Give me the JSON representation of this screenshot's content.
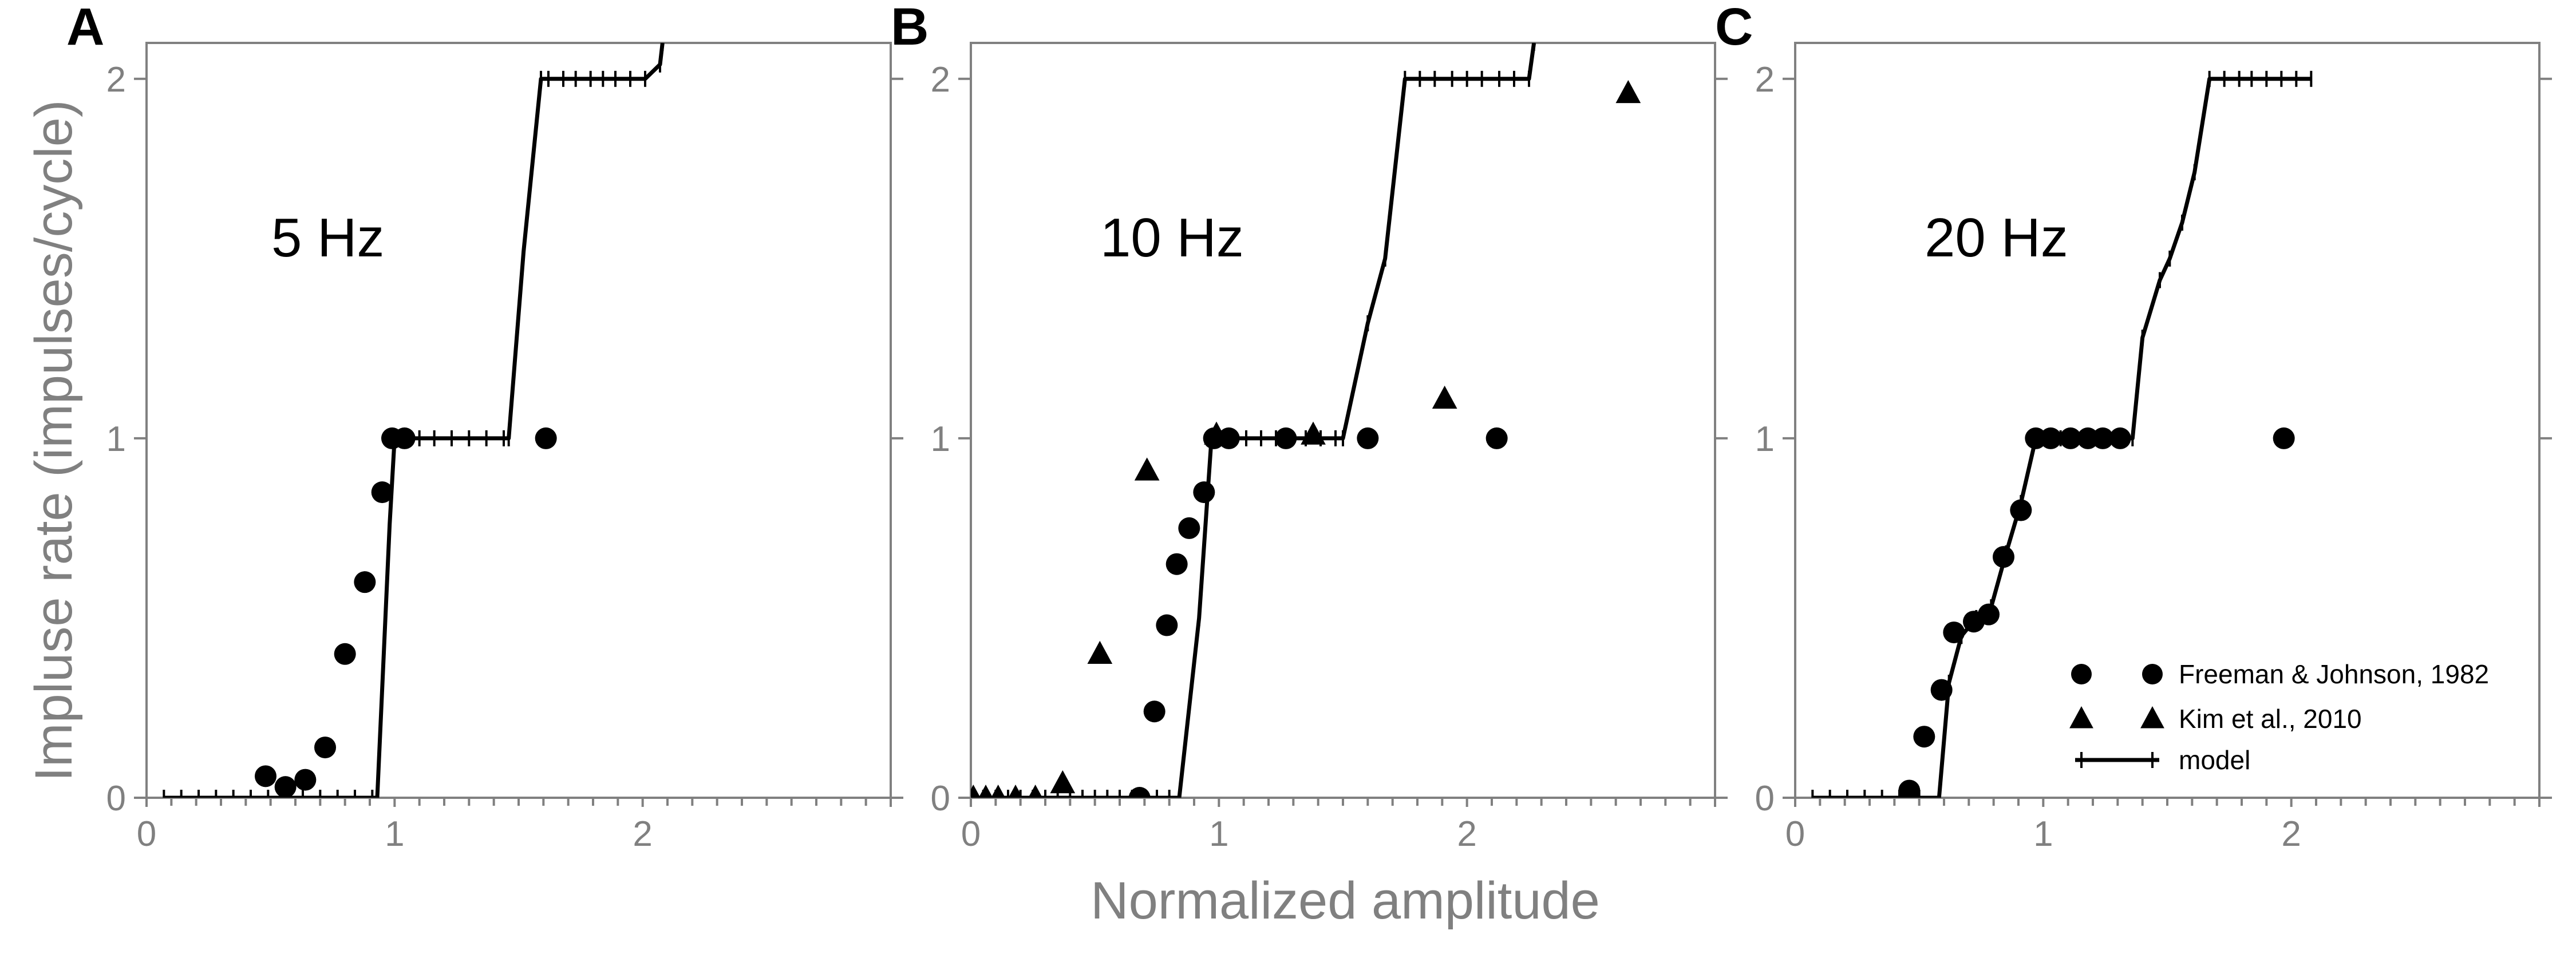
{
  "figure": {
    "ylabel": "Impluse rate (impulses/cycle)",
    "xlabel": "Normalized amplitude"
  },
  "legend": {
    "position": "bottom-right of panel C",
    "entries": [
      {
        "label": "Freeman & Johnson, 1982",
        "marker": "circle"
      },
      {
        "label": "Kim et al., 2010",
        "marker": "triangle"
      },
      {
        "label": "model",
        "marker": "line-with-ticks"
      }
    ]
  },
  "colors": {
    "axis": "#808080",
    "data": "#000000"
  },
  "chart_data": [
    {
      "panel": "A",
      "type": "line",
      "title": "5 Hz",
      "xlim": [
        0,
        3
      ],
      "ylim": [
        0,
        2.1
      ],
      "xticks": [
        0,
        0.1,
        0.2,
        0.3,
        0.4,
        0.5,
        0.6,
        0.7,
        0.8,
        0.9,
        1.0,
        1.1,
        1.2,
        1.3,
        1.4,
        1.5,
        1.6,
        1.7,
        1.8,
        1.9,
        2.0,
        2.1,
        2.2,
        2.3,
        2.4,
        2.5,
        2.6,
        2.7,
        2.8,
        2.9,
        3.0
      ],
      "xtick_labels": {
        "0": "0",
        "1": "1",
        "2": "2"
      },
      "yticks": [
        0,
        1,
        2
      ],
      "ytick_labels": [
        "0",
        "1",
        "2"
      ],
      "series": [
        {
          "name": "Freeman & Johnson, 1982",
          "marker": "circle",
          "x": [
            0.48,
            0.56,
            0.64,
            0.72,
            0.8,
            0.88,
            0.95,
            0.99,
            1.04,
            1.61
          ],
          "y": [
            0.06,
            0.03,
            0.05,
            0.14,
            0.4,
            0.6,
            0.85,
            1.0,
            1.0,
            1.0
          ]
        },
        {
          "name": "model",
          "marker": "line-with-ticks",
          "x": [
            0.07,
            0.14,
            0.21,
            0.28,
            0.35,
            0.42,
            0.49,
            0.56,
            0.63,
            0.7,
            0.77,
            0.84,
            0.91,
            0.93,
            0.98,
            1.0,
            1.04,
            1.1,
            1.16,
            1.23,
            1.3,
            1.37,
            1.44,
            1.46,
            1.52,
            1.59,
            1.62,
            1.68,
            1.73,
            1.79,
            1.84,
            1.89,
            1.95,
            2.01,
            2.07,
            2.08
          ],
          "y": [
            0,
            0,
            0,
            0,
            0,
            0,
            0,
            0,
            0,
            0,
            0,
            0,
            0,
            0,
            0.76,
            1,
            1,
            1,
            1,
            1,
            1,
            1,
            1,
            1,
            1.52,
            2,
            2,
            2,
            2,
            2,
            2,
            2,
            2,
            2,
            2.04,
            2.1
          ]
        }
      ]
    },
    {
      "panel": "B",
      "type": "line",
      "title": "10 Hz",
      "xlim": [
        0,
        3
      ],
      "ylim": [
        0,
        2.1
      ],
      "xticks": [
        0,
        0.1,
        0.2,
        0.3,
        0.4,
        0.5,
        0.6,
        0.7,
        0.8,
        0.9,
        1.0,
        1.1,
        1.2,
        1.3,
        1.4,
        1.5,
        1.6,
        1.7,
        1.8,
        1.9,
        2.0,
        2.1,
        2.2,
        2.3,
        2.4,
        2.5,
        2.6,
        2.7,
        2.8,
        2.9,
        3.0
      ],
      "xtick_labels": {
        "0": "0",
        "1": "1",
        "2": "2"
      },
      "yticks": [
        0,
        1,
        2
      ],
      "ytick_labels": [
        "0",
        "1",
        "2"
      ],
      "series": [
        {
          "name": "Freeman & Johnson, 1982",
          "marker": "circle",
          "x": [
            0.68,
            0.74,
            0.79,
            0.83,
            0.88,
            0.94,
            0.98,
            1.04,
            1.27,
            1.6,
            2.12
          ],
          "y": [
            0.0,
            0.24,
            0.48,
            0.65,
            0.75,
            0.85,
            1.0,
            1.0,
            1.0,
            1.0,
            1.0
          ]
        },
        {
          "name": "Kim et al., 2010",
          "marker": "triangle",
          "x": [
            0.01,
            0.06,
            0.11,
            0.18,
            0.26,
            0.37,
            0.52,
            0.71,
            0.99,
            1.38,
            1.91,
            2.65
          ],
          "y": [
            0.0,
            0.0,
            0.0,
            0.0,
            0.0,
            0.04,
            0.4,
            0.91,
            1.01,
            1.01,
            1.11,
            1.96
          ]
        },
        {
          "name": "model",
          "marker": "line-with-ticks",
          "x": [
            0.05,
            0.1,
            0.15,
            0.2,
            0.25,
            0.3,
            0.35,
            0.4,
            0.45,
            0.5,
            0.55,
            0.6,
            0.65,
            0.7,
            0.75,
            0.8,
            0.84,
            0.92,
            0.97,
            1.05,
            1.11,
            1.17,
            1.23,
            1.29,
            1.35,
            1.41,
            1.47,
            1.5,
            1.6,
            1.67,
            1.75,
            1.81,
            1.87,
            1.94,
            2.0,
            2.06,
            2.13,
            2.19,
            2.25,
            2.27
          ],
          "y": [
            0,
            0,
            0,
            0,
            0,
            0,
            0,
            0,
            0,
            0,
            0,
            0,
            0,
            0,
            0,
            0,
            0,
            0.5,
            1,
            1,
            1,
            1,
            1,
            1,
            1,
            1,
            1,
            1,
            1.32,
            1.5,
            2,
            2,
            2,
            2,
            2,
            2,
            2,
            2,
            2,
            2.1
          ]
        }
      ]
    },
    {
      "panel": "C",
      "type": "line",
      "title": "20 Hz",
      "xlim": [
        0,
        3
      ],
      "ylim": [
        0,
        2.1
      ],
      "xticks": [
        0,
        0.1,
        0.2,
        0.3,
        0.4,
        0.5,
        0.6,
        0.7,
        0.8,
        0.9,
        1.0,
        1.1,
        1.2,
        1.3,
        1.4,
        1.5,
        1.6,
        1.7,
        1.8,
        1.9,
        2.0,
        2.1,
        2.2,
        2.3,
        2.4,
        2.5,
        2.6,
        2.7,
        2.8,
        2.9,
        3.0
      ],
      "xtick_labels": {
        "0": "0",
        "1": "1",
        "2": "2"
      },
      "yticks": [
        0,
        1,
        2
      ],
      "ytick_labels": [
        "0",
        "1",
        "2"
      ],
      "series": [
        {
          "name": "Freeman & Johnson, 1982",
          "marker": "circle",
          "x": [
            0.46,
            0.52,
            0.59,
            0.64,
            0.72,
            0.78,
            0.84,
            0.91,
            0.97,
            1.03,
            1.11,
            1.18,
            1.24,
            1.31,
            1.97
          ],
          "y": [
            0.02,
            0.17,
            0.3,
            0.46,
            0.49,
            0.51,
            0.67,
            0.8,
            1.0,
            1.0,
            1.0,
            1.0,
            1.0,
            1.0,
            1.0
          ]
        },
        {
          "name": "model",
          "marker": "line-with-ticks",
          "x": [
            0.07,
            0.14,
            0.21,
            0.28,
            0.35,
            0.42,
            0.5,
            0.58,
            0.62,
            0.67,
            0.73,
            0.79,
            0.85,
            0.91,
            0.97,
            1.02,
            1.07,
            1.13,
            1.19,
            1.25,
            1.3,
            1.36,
            1.4,
            1.47,
            1.51,
            1.56,
            1.61,
            1.67,
            1.73,
            1.79,
            1.84,
            1.9,
            1.96,
            2.02,
            2.08
          ],
          "y": [
            0,
            0,
            0,
            0,
            0,
            0,
            0,
            0,
            0.32,
            0.45,
            0.5,
            0.53,
            0.68,
            0.82,
            1,
            1,
            1,
            1,
            1,
            1,
            1,
            1,
            1.28,
            1.44,
            1.5,
            1.6,
            1.74,
            2,
            2,
            2,
            2,
            2,
            2,
            2,
            2
          ]
        }
      ]
    }
  ]
}
